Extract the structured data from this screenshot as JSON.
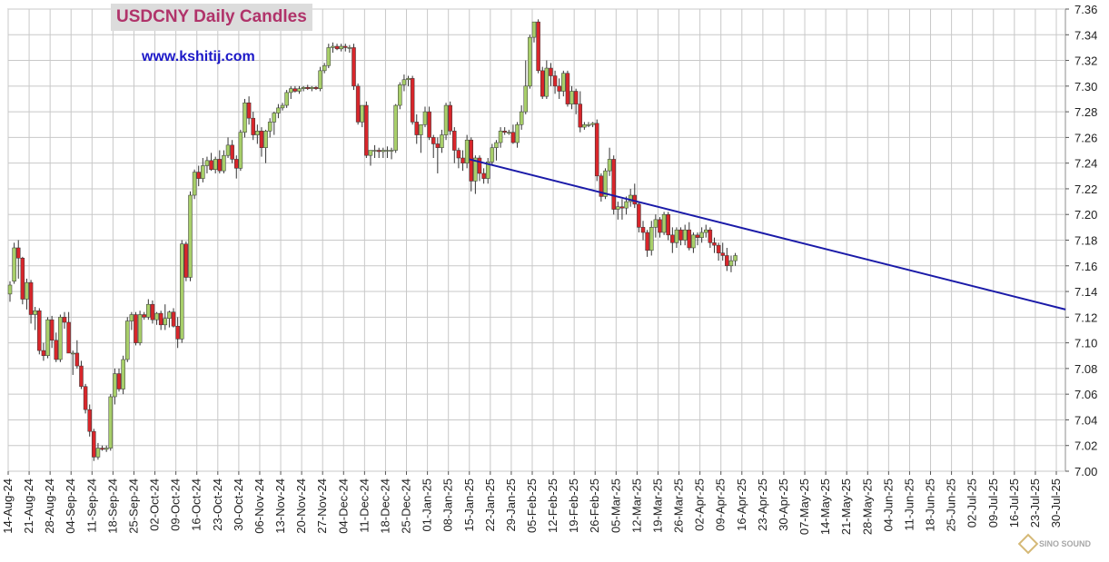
{
  "chart_data": {
    "type": "candlestick",
    "title": "USDCNY Daily Candles",
    "subtitle": "www.kshitij.com",
    "ylim": [
      7.0,
      7.36
    ],
    "y_ticks": [
      "7.00",
      "7.02",
      "7.04",
      "7.06",
      "7.08",
      "7.10",
      "7.12",
      "7.14",
      "7.16",
      "7.18",
      "7.20",
      "7.22",
      "7.24",
      "7.26",
      "7.28",
      "7.30",
      "7.32",
      "7.34",
      "7.36"
    ],
    "x_ticks": [
      "14-Aug-24",
      "21-Aug-24",
      "28-Aug-24",
      "04-Sep-24",
      "11-Sep-24",
      "18-Sep-24",
      "25-Sep-24",
      "02-Oct-24",
      "09-Oct-24",
      "16-Oct-24",
      "23-Oct-24",
      "30-Oct-24",
      "06-Nov-24",
      "13-Nov-24",
      "20-Nov-24",
      "27-Nov-24",
      "04-Dec-24",
      "11-Dec-24",
      "18-Dec-24",
      "25-Dec-24",
      "01-Jan-25",
      "08-Jan-25",
      "15-Jan-25",
      "22-Jan-25",
      "29-Jan-25",
      "05-Feb-25",
      "12-Feb-25",
      "19-Feb-25",
      "26-Feb-25",
      "05-Mar-25",
      "12-Mar-25",
      "19-Mar-25",
      "26-Mar-25",
      "02-Apr-25",
      "09-Apr-25",
      "16-Apr-25",
      "23-Apr-25",
      "30-Apr-25",
      "07-May-25",
      "14-May-25",
      "21-May-25",
      "28-May-25",
      "04-Jun-25",
      "11-Jun-25",
      "18-Jun-25",
      "25-Jun-25",
      "02-Jul-25",
      "09-Jul-25",
      "16-Jul-25",
      "23-Jul-25",
      "30-Jul-25"
    ],
    "grid": true,
    "colors": {
      "up": "#a8cf6a",
      "down": "#d8262b",
      "trendline": "#1a1aa8",
      "grid": "#c8c8c8"
    },
    "trendline": {
      "start": [
        "15-Jan-25",
        7.243
      ],
      "end": [
        "02-Aug-25",
        7.126
      ]
    },
    "candles": [
      [
        7.138,
        7.148,
        7.132,
        7.145
      ],
      [
        7.148,
        7.178,
        7.146,
        7.174
      ],
      [
        7.174,
        7.18,
        7.15,
        7.166
      ],
      [
        7.166,
        7.167,
        7.13,
        7.134
      ],
      [
        7.134,
        7.15,
        7.126,
        7.147
      ],
      [
        7.147,
        7.149,
        7.115,
        7.122
      ],
      [
        7.122,
        7.128,
        7.11,
        7.125
      ],
      [
        7.125,
        7.127,
        7.091,
        7.094
      ],
      [
        7.094,
        7.1,
        7.086,
        7.09
      ],
      [
        7.09,
        7.12,
        7.088,
        7.118
      ],
      [
        7.118,
        7.121,
        7.096,
        7.102
      ],
      [
        7.102,
        7.108,
        7.085,
        7.087
      ],
      [
        7.087,
        7.122,
        7.085,
        7.12
      ],
      [
        7.12,
        7.124,
        7.111,
        7.116
      ],
      [
        7.116,
        7.124,
        7.092,
        7.092
      ],
      [
        7.092,
        7.094,
        7.075,
        7.092
      ],
      [
        7.092,
        7.102,
        7.08,
        7.082
      ],
      [
        7.082,
        7.086,
        7.064,
        7.066
      ],
      [
        7.066,
        7.068,
        7.045,
        7.048
      ],
      [
        7.048,
        7.052,
        7.027,
        7.031
      ],
      [
        7.031,
        7.033,
        7.008,
        7.011
      ],
      [
        7.011,
        7.022,
        7.009,
        7.018
      ],
      [
        7.018,
        7.02,
        7.016,
        7.017
      ],
      [
        7.017,
        7.02,
        7.015,
        7.018
      ],
      [
        7.018,
        7.06,
        7.016,
        7.058
      ],
      [
        7.058,
        7.08,
        7.052,
        7.076
      ],
      [
        7.076,
        7.08,
        7.062,
        7.064
      ],
      [
        7.064,
        7.09,
        7.06,
        7.087
      ],
      [
        7.087,
        7.12,
        7.085,
        7.117
      ],
      [
        7.117,
        7.124,
        7.11,
        7.122
      ],
      [
        7.122,
        7.124,
        7.098,
        7.1
      ],
      [
        7.1,
        7.125,
        7.098,
        7.122
      ],
      [
        7.122,
        7.124,
        7.118,
        7.12
      ],
      [
        7.12,
        7.134,
        7.118,
        7.13
      ],
      [
        7.13,
        7.133,
        7.115,
        7.118
      ],
      [
        7.118,
        7.124,
        7.114,
        7.123
      ],
      [
        7.123,
        7.125,
        7.11,
        7.114
      ],
      [
        7.114,
        7.13,
        7.11,
        7.119
      ],
      [
        7.119,
        7.125,
        7.112,
        7.124
      ],
      [
        7.124,
        7.127,
        7.112,
        7.113
      ],
      [
        7.113,
        7.12,
        7.096,
        7.103
      ],
      [
        7.103,
        7.18,
        7.1,
        7.177
      ],
      [
        7.177,
        7.179,
        7.148,
        7.151
      ],
      [
        7.151,
        7.218,
        7.148,
        7.215
      ],
      [
        7.215,
        7.235,
        7.212,
        7.233
      ],
      [
        7.233,
        7.238,
        7.222,
        7.228
      ],
      [
        7.228,
        7.244,
        7.225,
        7.238
      ],
      [
        7.238,
        7.245,
        7.232,
        7.242
      ],
      [
        7.242,
        7.248,
        7.234,
        7.235
      ],
      [
        7.235,
        7.245,
        7.232,
        7.243
      ],
      [
        7.243,
        7.25,
        7.232,
        7.234
      ],
      [
        7.234,
        7.25,
        7.232,
        7.246
      ],
      [
        7.246,
        7.26,
        7.244,
        7.254
      ],
      [
        7.254,
        7.258,
        7.24,
        7.243
      ],
      [
        7.243,
        7.246,
        7.228,
        7.236
      ],
      [
        7.236,
        7.266,
        7.234,
        7.264
      ],
      [
        7.264,
        7.29,
        7.26,
        7.287
      ],
      [
        7.287,
        7.292,
        7.27,
        7.275
      ],
      [
        7.275,
        7.28,
        7.258,
        7.262
      ],
      [
        7.262,
        7.27,
        7.255,
        7.265
      ],
      [
        7.265,
        7.268,
        7.245,
        7.252
      ],
      [
        7.252,
        7.266,
        7.24,
        7.265
      ],
      [
        7.265,
        7.275,
        7.26,
        7.272
      ],
      [
        7.272,
        7.28,
        7.262,
        7.279
      ],
      [
        7.279,
        7.286,
        7.275,
        7.283
      ],
      [
        7.283,
        7.287,
        7.281,
        7.285
      ],
      [
        7.285,
        7.297,
        7.283,
        7.295
      ],
      [
        7.295,
        7.3,
        7.29,
        7.298
      ],
      [
        7.298,
        7.3,
        7.295,
        7.296
      ],
      [
        7.296,
        7.3,
        7.294,
        7.298
      ],
      [
        7.298,
        7.3,
        7.296,
        7.299
      ],
      [
        7.299,
        7.301,
        7.297,
        7.298
      ],
      [
        7.298,
        7.3,
        7.296,
        7.299
      ],
      [
        7.299,
        7.3,
        7.297,
        7.298
      ],
      [
        7.298,
        7.315,
        7.296,
        7.312
      ],
      [
        7.312,
        7.318,
        7.31,
        7.316
      ],
      [
        7.316,
        7.333,
        7.314,
        7.33
      ],
      [
        7.33,
        7.334,
        7.326,
        7.331
      ],
      [
        7.331,
        7.333,
        7.328,
        7.329
      ],
      [
        7.329,
        7.333,
        7.327,
        7.331
      ],
      [
        7.331,
        7.333,
        7.327,
        7.33
      ],
      [
        7.33,
        7.332,
        7.326,
        7.33
      ],
      [
        7.33,
        7.333,
        7.297,
        7.3
      ],
      [
        7.3,
        7.302,
        7.27,
        7.272
      ],
      [
        7.272,
        7.285,
        7.268,
        7.285
      ],
      [
        7.285,
        7.288,
        7.244,
        7.246
      ],
      [
        7.246,
        7.25,
        7.238,
        7.25
      ],
      [
        7.25,
        7.254,
        7.244,
        7.25
      ],
      [
        7.25,
        7.252,
        7.244,
        7.249
      ],
      [
        7.249,
        7.252,
        7.244,
        7.25
      ],
      [
        7.25,
        7.253,
        7.244,
        7.25
      ],
      [
        7.25,
        7.252,
        7.243,
        7.25
      ],
      [
        7.25,
        7.286,
        7.248,
        7.285
      ],
      [
        7.285,
        7.303,
        7.282,
        7.301
      ],
      [
        7.301,
        7.309,
        7.296,
        7.305
      ],
      [
        7.305,
        7.308,
        7.3,
        7.306
      ],
      [
        7.306,
        7.308,
        7.27,
        7.272
      ],
      [
        7.272,
        7.278,
        7.255,
        7.262
      ],
      [
        7.262,
        7.27,
        7.248,
        7.27
      ],
      [
        7.27,
        7.284,
        7.268,
        7.28
      ],
      [
        7.28,
        7.284,
        7.258,
        7.26
      ],
      [
        7.26,
        7.262,
        7.244,
        7.255
      ],
      [
        7.255,
        7.26,
        7.232,
        7.252
      ],
      [
        7.252,
        7.266,
        7.248,
        7.262
      ],
      [
        7.262,
        7.287,
        7.258,
        7.285
      ],
      [
        7.285,
        7.288,
        7.262,
        7.265
      ],
      [
        7.265,
        7.268,
        7.24,
        7.25
      ],
      [
        7.25,
        7.252,
        7.236,
        7.244
      ],
      [
        7.244,
        7.25,
        7.234,
        7.24
      ],
      [
        7.24,
        7.262,
        7.236,
        7.258
      ],
      [
        7.258,
        7.26,
        7.218,
        7.226
      ],
      [
        7.226,
        7.246,
        7.216,
        7.244
      ],
      [
        7.244,
        7.246,
        7.226,
        7.232
      ],
      [
        7.232,
        7.236,
        7.224,
        7.228
      ],
      [
        7.228,
        7.244,
        7.224,
        7.241
      ],
      [
        7.241,
        7.255,
        7.238,
        7.252
      ],
      [
        7.252,
        7.258,
        7.242,
        7.256
      ],
      [
        7.256,
        7.268,
        7.252,
        7.265
      ],
      [
        7.265,
        7.268,
        7.262,
        7.264
      ],
      [
        7.264,
        7.266,
        7.262,
        7.264
      ],
      [
        7.264,
        7.27,
        7.255,
        7.256
      ],
      [
        7.256,
        7.272,
        7.252,
        7.27
      ],
      [
        7.27,
        7.285,
        7.266,
        7.28
      ],
      [
        7.28,
        7.32,
        7.278,
        7.3
      ],
      [
        7.3,
        7.34,
        7.298,
        7.338
      ],
      [
        7.338,
        7.35,
        7.334,
        7.35
      ],
      [
        7.35,
        7.352,
        7.31,
        7.312
      ],
      [
        7.312,
        7.315,
        7.29,
        7.292
      ],
      [
        7.292,
        7.32,
        7.29,
        7.314
      ],
      [
        7.314,
        7.318,
        7.3,
        7.308
      ],
      [
        7.308,
        7.312,
        7.294,
        7.3
      ],
      [
        7.3,
        7.306,
        7.29,
        7.296
      ],
      [
        7.296,
        7.312,
        7.292,
        7.31
      ],
      [
        7.31,
        7.312,
        7.284,
        7.286
      ],
      [
        7.286,
        7.3,
        7.282,
        7.296
      ],
      [
        7.296,
        7.298,
        7.278,
        7.286
      ],
      [
        7.286,
        7.296,
        7.264,
        7.268
      ],
      [
        7.268,
        7.272,
        7.266,
        7.27
      ],
      [
        7.27,
        7.272,
        7.268,
        7.27
      ],
      [
        7.27,
        7.272,
        7.268,
        7.271
      ],
      [
        7.271,
        7.274,
        7.226,
        7.23
      ],
      [
        7.23,
        7.232,
        7.21,
        7.214
      ],
      [
        7.214,
        7.236,
        7.212,
        7.234
      ],
      [
        7.234,
        7.252,
        7.23,
        7.243
      ],
      [
        7.243,
        7.246,
        7.2,
        7.204
      ],
      [
        7.204,
        7.21,
        7.196,
        7.206
      ],
      [
        7.206,
        7.212,
        7.196,
        7.205
      ],
      [
        7.205,
        7.214,
        7.2,
        7.21
      ],
      [
        7.21,
        7.22,
        7.206,
        7.215
      ],
      [
        7.215,
        7.224,
        7.205,
        7.208
      ],
      [
        7.208,
        7.21,
        7.186,
        7.19
      ],
      [
        7.19,
        7.195,
        7.18,
        7.186
      ],
      [
        7.186,
        7.188,
        7.167,
        7.172
      ],
      [
        7.172,
        7.195,
        7.168,
        7.19
      ],
      [
        7.19,
        7.2,
        7.182,
        7.196
      ],
      [
        7.196,
        7.198,
        7.182,
        7.186
      ],
      [
        7.186,
        7.202,
        7.184,
        7.2
      ],
      [
        7.2,
        7.202,
        7.18,
        7.184
      ],
      [
        7.184,
        7.19,
        7.17,
        7.178
      ],
      [
        7.178,
        7.19,
        7.174,
        7.188
      ],
      [
        7.188,
        7.19,
        7.176,
        7.18
      ],
      [
        7.18,
        7.192,
        7.176,
        7.188
      ],
      [
        7.188,
        7.194,
        7.172,
        7.174
      ],
      [
        7.174,
        7.186,
        7.17,
        7.184
      ],
      [
        7.184,
        7.186,
        7.176,
        7.182
      ],
      [
        7.182,
        7.19,
        7.178,
        7.186
      ],
      [
        7.186,
        7.192,
        7.182,
        7.188
      ],
      [
        7.188,
        7.19,
        7.174,
        7.178
      ],
      [
        7.178,
        7.182,
        7.17,
        7.176
      ],
      [
        7.176,
        7.178,
        7.164,
        7.17
      ],
      [
        7.17,
        7.178,
        7.164,
        7.168
      ],
      [
        7.168,
        7.174,
        7.156,
        7.16
      ],
      [
        7.16,
        7.168,
        7.155,
        7.164
      ],
      [
        7.164,
        7.17,
        7.16,
        7.168
      ]
    ]
  }
}
